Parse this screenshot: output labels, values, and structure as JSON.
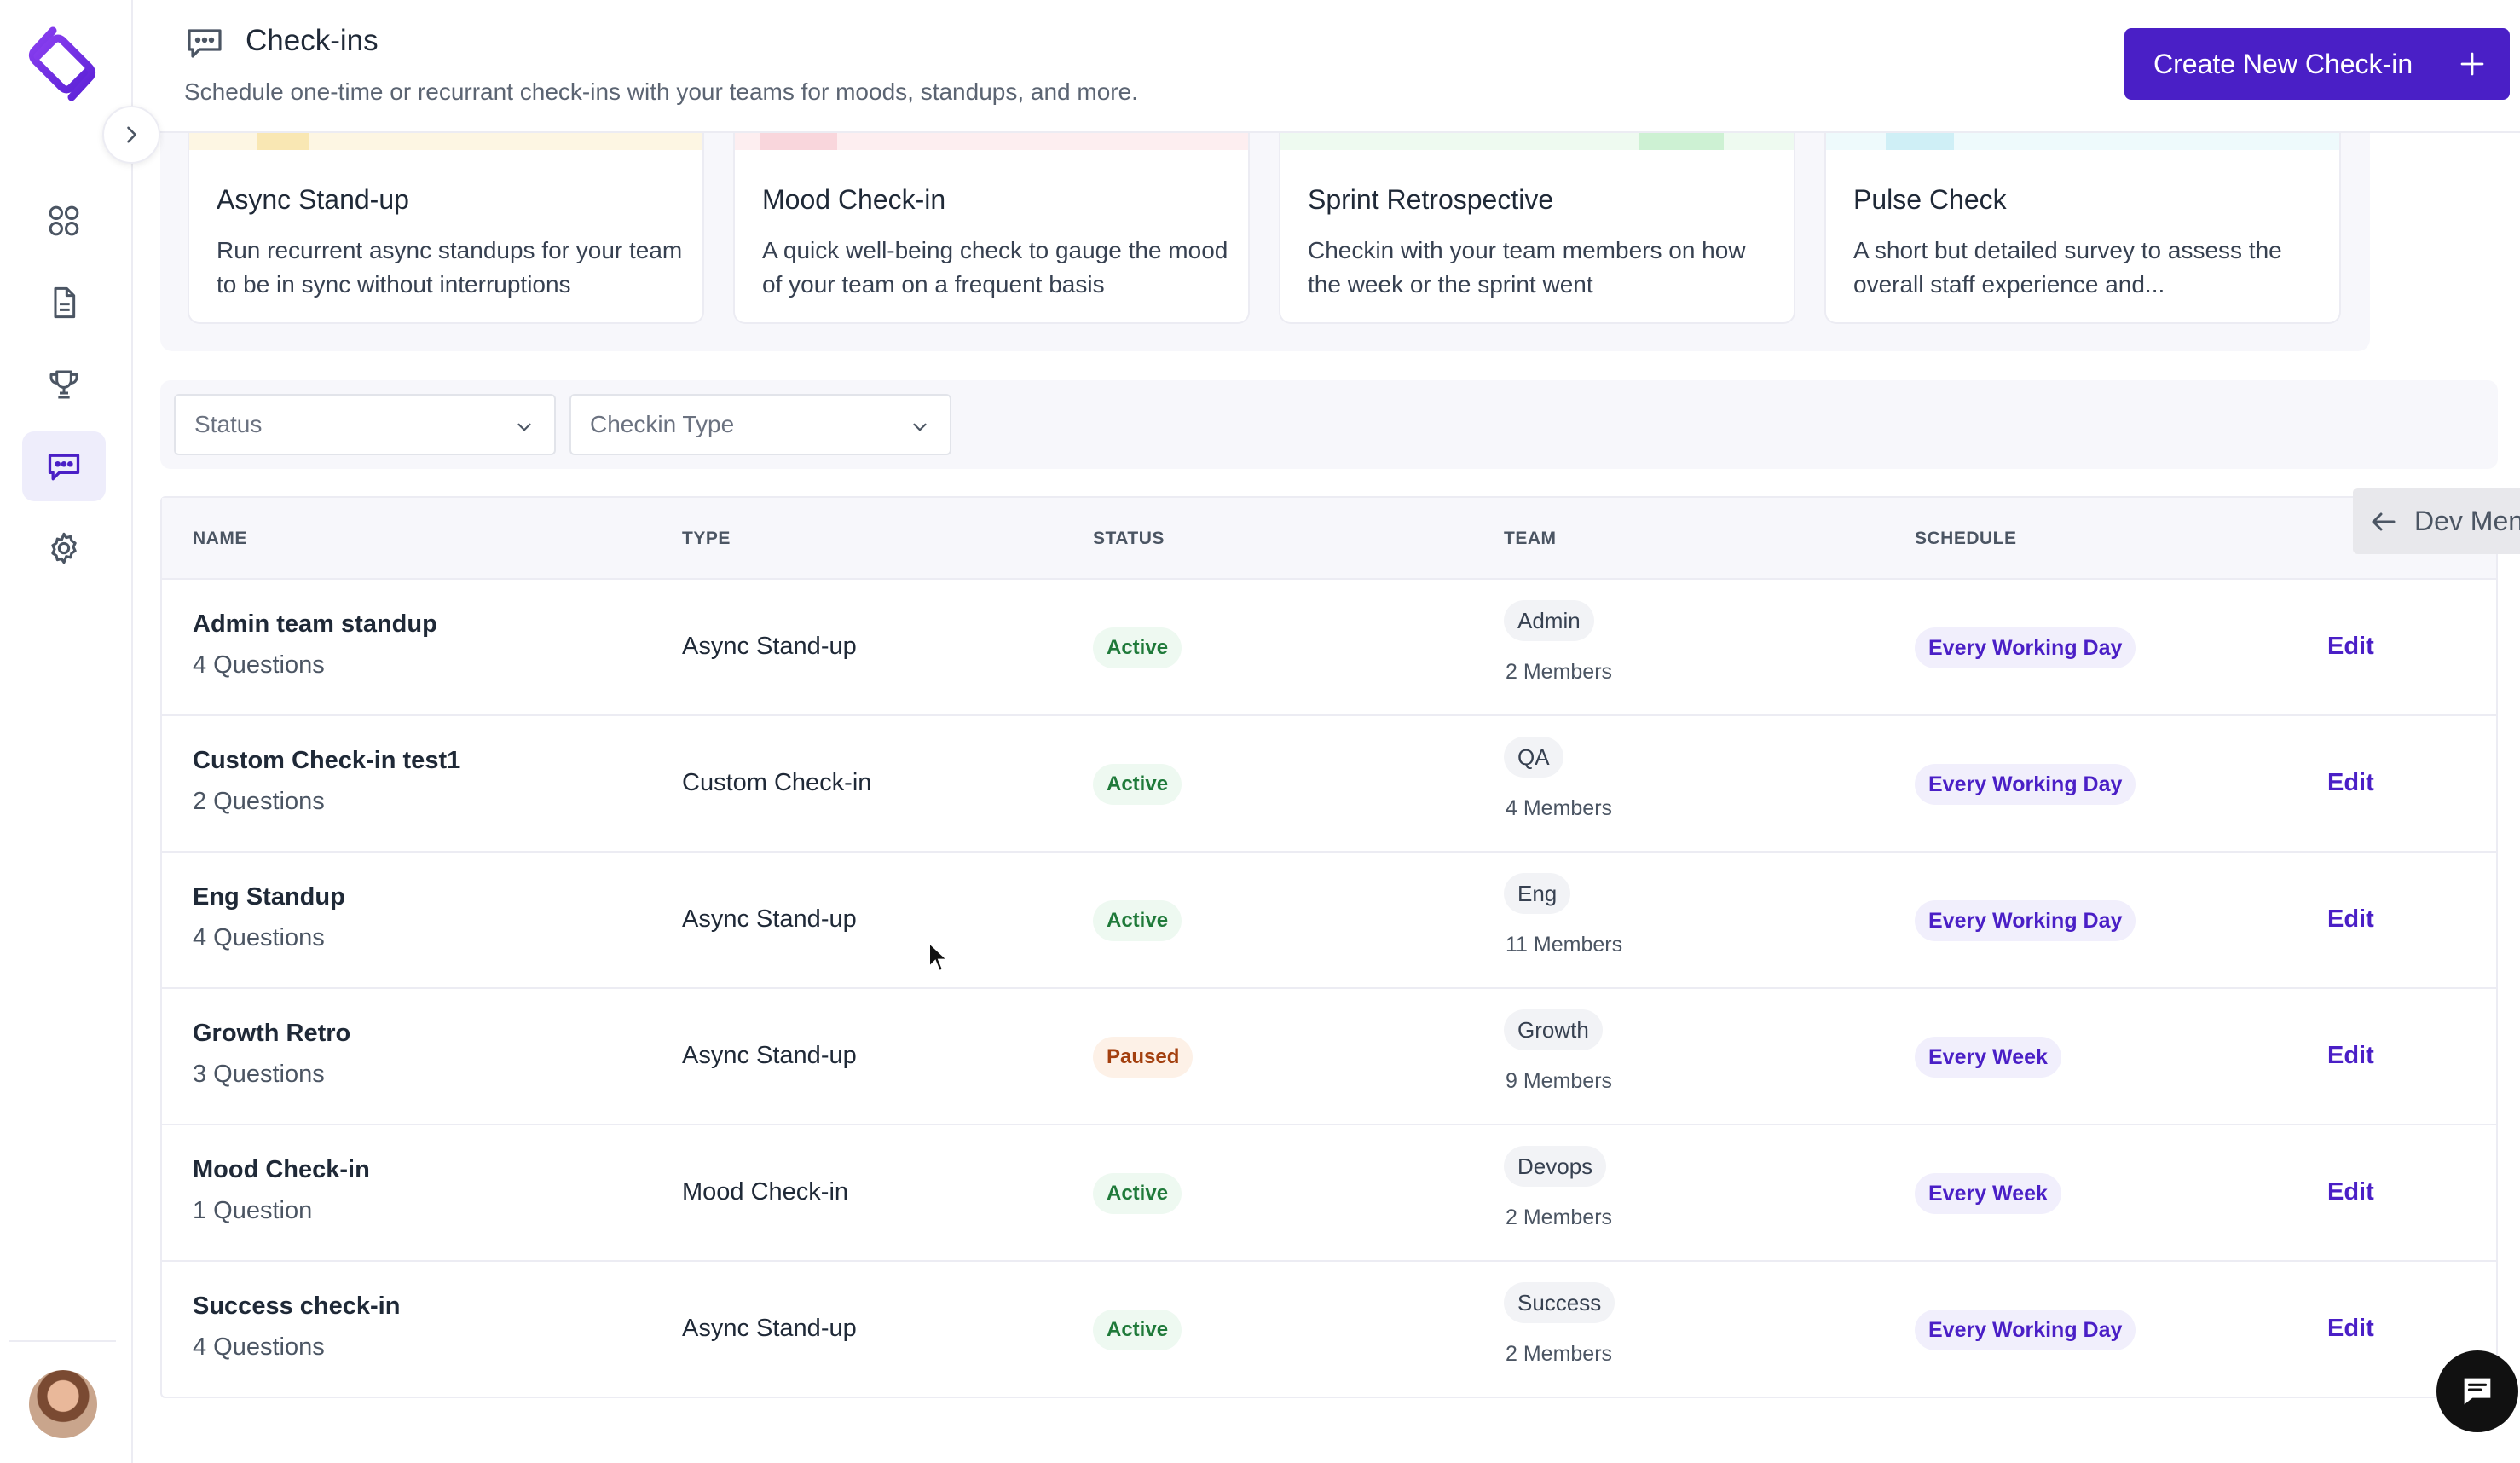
{
  "header": {
    "title": "Check-ins",
    "subtitle": "Schedule one-time or recurrant check-ins with your teams for moods, standups, and more.",
    "create_label": "Create New Check-in"
  },
  "colors": {
    "brand": "#4a1fc6",
    "active_badge_bg": "#eef9f1",
    "active_badge_text": "#1f7a3a",
    "paused_badge_bg": "#fdf1e7",
    "paused_badge_text": "#a3400f"
  },
  "sidebar": {
    "items": [
      {
        "icon": "grid-icon"
      },
      {
        "icon": "document-icon"
      },
      {
        "icon": "trophy-icon"
      },
      {
        "icon": "chat-icon",
        "active": true
      },
      {
        "icon": "gear-icon"
      }
    ]
  },
  "templates": [
    {
      "title": "Async Stand-up",
      "desc": "Run recurrent async standups for your team to be in sync without interruptions"
    },
    {
      "title": "Mood Check-in",
      "desc": "A quick well-being check to gauge the mood of your team on a frequent basis"
    },
    {
      "title": "Sprint Retrospective",
      "desc": "Checkin with your team members on how the week or the sprint went"
    },
    {
      "title": "Pulse Check",
      "desc": "A short but detailed survey to assess the overall staff experience and..."
    }
  ],
  "filters": {
    "status_placeholder": "Status",
    "type_placeholder": "Checkin Type"
  },
  "table": {
    "columns": [
      "NAME",
      "TYPE",
      "STATUS",
      "TEAM",
      "SCHEDULE"
    ],
    "edit_label": "Edit",
    "rows": [
      {
        "name": "Admin team standup",
        "questions": "4 Questions",
        "type": "Async Stand-up",
        "status": "Active",
        "team": "Admin",
        "members": "2 Members",
        "schedule": "Every Working Day"
      },
      {
        "name": "Custom Check-in test1",
        "questions": "2 Questions",
        "type": "Custom Check-in",
        "status": "Active",
        "team": "QA",
        "members": "4 Members",
        "schedule": "Every Working Day"
      },
      {
        "name": "Eng Standup",
        "questions": "4 Questions",
        "type": "Async Stand-up",
        "status": "Active",
        "team": "Eng",
        "members": "11 Members",
        "schedule": "Every Working Day"
      },
      {
        "name": "Growth Retro",
        "questions": "3 Questions",
        "type": "Async Stand-up",
        "status": "Paused",
        "team": "Growth",
        "members": "9 Members",
        "schedule": "Every Week"
      },
      {
        "name": "Mood Check-in",
        "questions": "1 Question",
        "type": "Mood Check-in",
        "status": "Active",
        "team": "Devops",
        "members": "2 Members",
        "schedule": "Every Week"
      },
      {
        "name": "Success check-in",
        "questions": "4 Questions",
        "type": "Async Stand-up",
        "status": "Active",
        "team": "Success",
        "members": "2 Members",
        "schedule": "Every Working Day"
      }
    ]
  },
  "dev_menu": {
    "label": "Dev Men"
  }
}
